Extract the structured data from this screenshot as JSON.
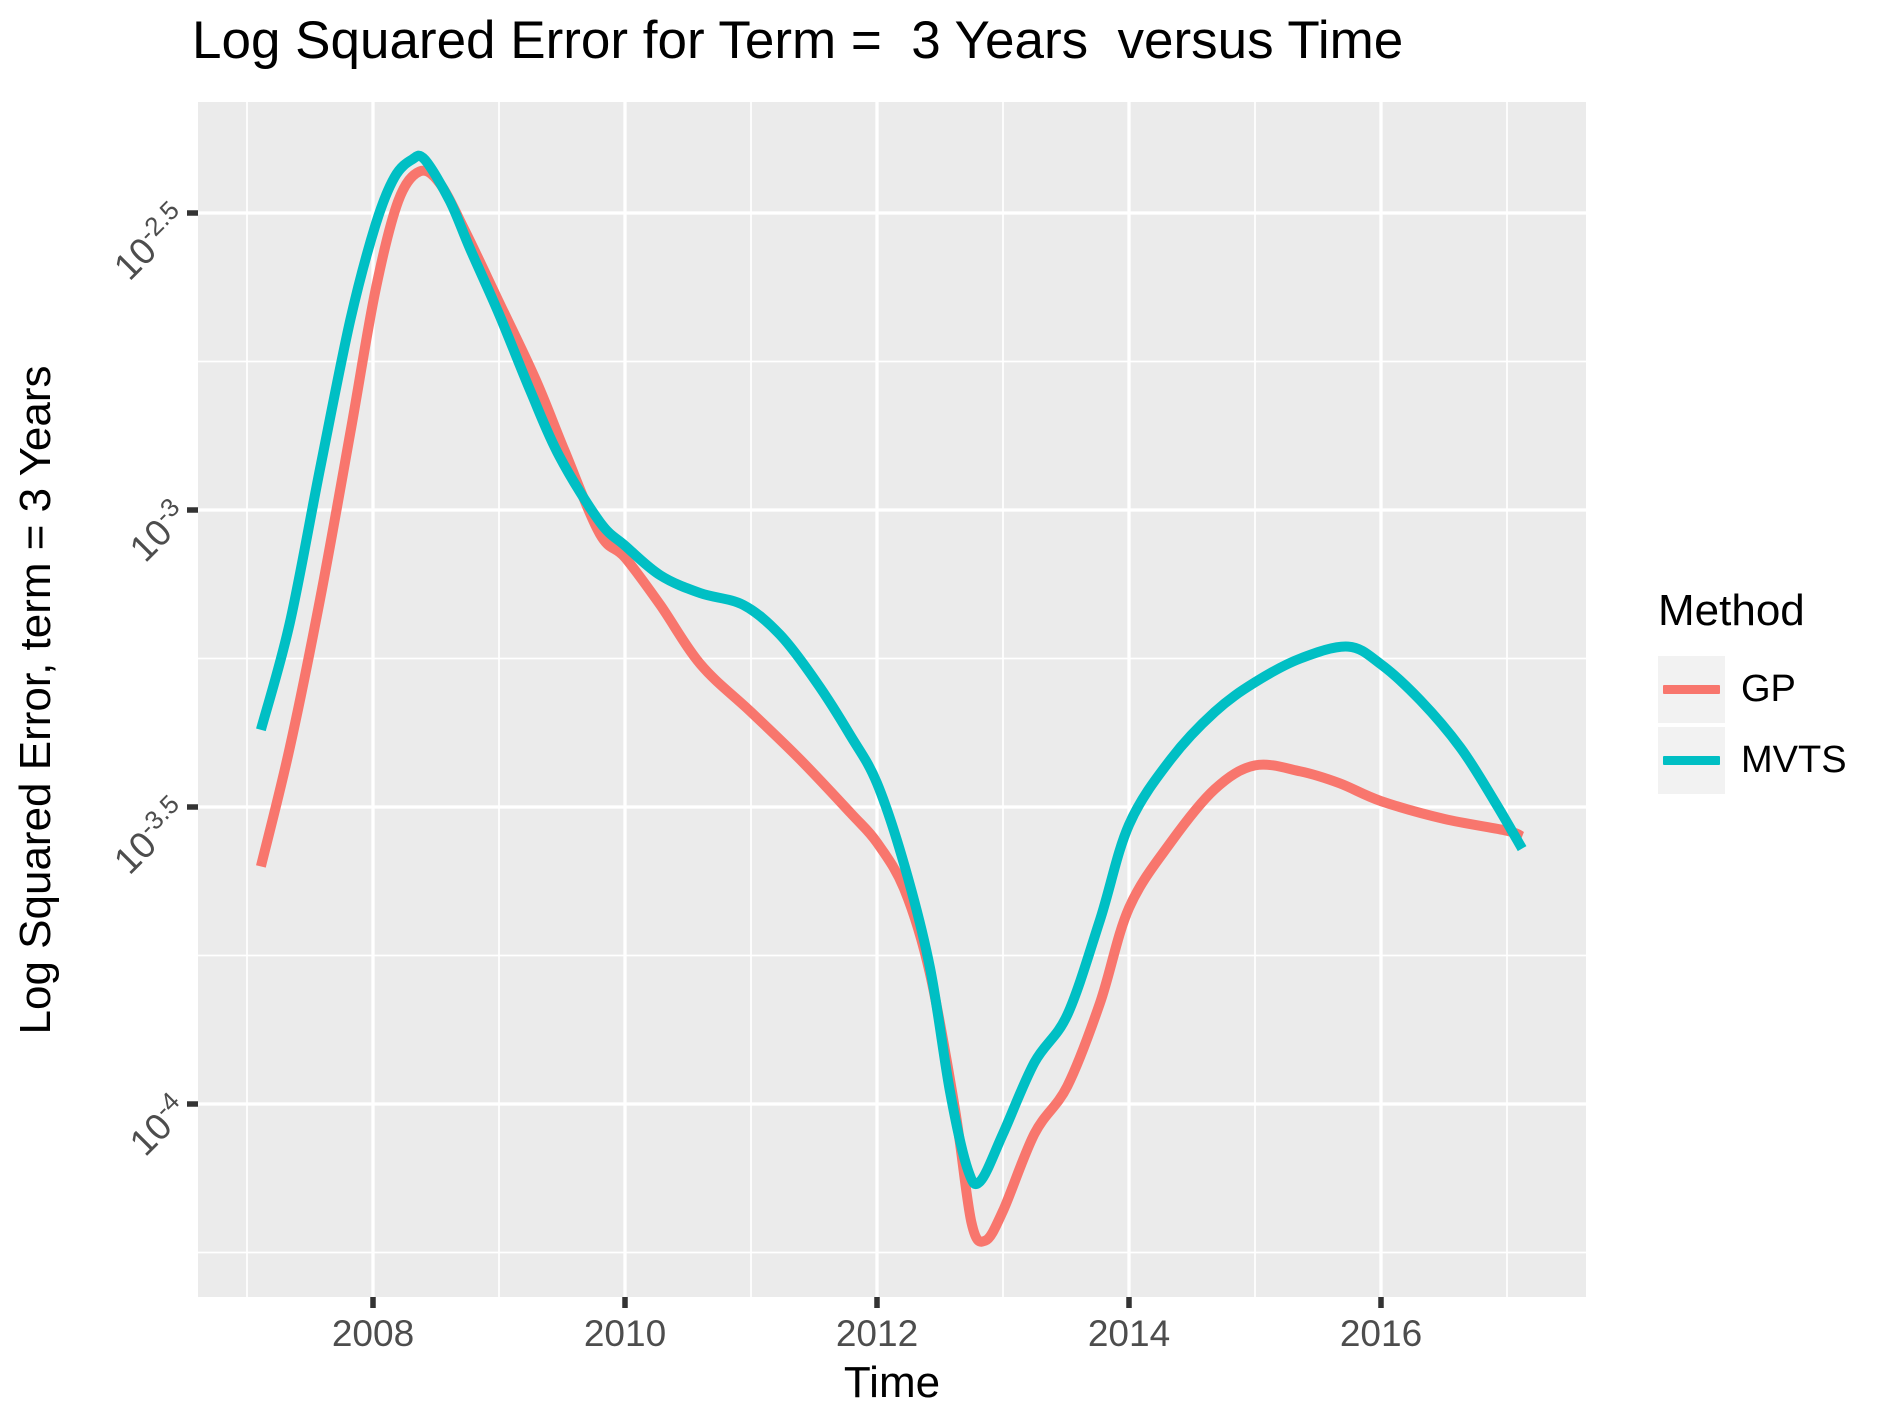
{
  "title": "Log Squared Error for Term =  3 Years  versus Time",
  "axes": {
    "x_label": "Time",
    "y_label": "Log Squared Error, term = 3 Years"
  },
  "legend": {
    "title": "Method",
    "items": [
      {
        "label": "GP",
        "color": "#F8766D"
      },
      {
        "label": "MVTS",
        "color": "#00BFC4"
      }
    ]
  },
  "colors": {
    "panel_bg": "#EBEBEB",
    "grid": "#FFFFFF",
    "tick_mark": "#333333",
    "tick_label": "#4D4D4D",
    "legend_key_bg": "#F2F2F2",
    "gp": "#F8766D",
    "mvts": "#00BFC4"
  },
  "chart_data": {
    "type": "line",
    "title": "Log Squared Error for Term =  3 Years  versus Time",
    "xlabel": "Time",
    "ylabel": "Log Squared Error, term = 3 Years",
    "grid": true,
    "legend_position": "right",
    "x_axis": {
      "lim": [
        2006.61,
        2017.63
      ],
      "major_ticks": [
        2008,
        2010,
        2012,
        2014,
        2016
      ],
      "major_tick_labels": [
        "2008",
        "2010",
        "2012",
        "2014",
        "2016"
      ],
      "minor_gridlines": [
        2007,
        2009,
        2011,
        2013,
        2015,
        2017
      ]
    },
    "y_axis": {
      "scale": "log10",
      "lim_log10": [
        -4.325,
        -2.313
      ],
      "major_ticks": [
        {
          "value": -2.5,
          "base": "10",
          "exp": "-2.5"
        },
        {
          "value": -3.0,
          "base": "10",
          "exp": "-3"
        },
        {
          "value": -3.5,
          "base": "10",
          "exp": "-3.5"
        },
        {
          "value": -4.0,
          "base": "10",
          "exp": "-4"
        }
      ],
      "minor_gridlines": [
        -2.75,
        -3.25,
        -3.75,
        -4.25
      ]
    },
    "series": [
      {
        "name": "GP",
        "color": "#F8766D",
        "points": [
          [
            2007.11,
            -3.6
          ],
          [
            2007.34,
            -3.4
          ],
          [
            2007.58,
            -3.15
          ],
          [
            2007.82,
            -2.87
          ],
          [
            2008.02,
            -2.63
          ],
          [
            2008.2,
            -2.48
          ],
          [
            2008.37,
            -2.43
          ],
          [
            2008.53,
            -2.45
          ],
          [
            2008.73,
            -2.53
          ],
          [
            2009.0,
            -2.65
          ],
          [
            2009.29,
            -2.78
          ],
          [
            2009.52,
            -2.9
          ],
          [
            2009.8,
            -3.04
          ],
          [
            2010.0,
            -3.08
          ],
          [
            2010.28,
            -3.16
          ],
          [
            2010.6,
            -3.26
          ],
          [
            2011.0,
            -3.34
          ],
          [
            2011.39,
            -3.42
          ],
          [
            2011.79,
            -3.51
          ],
          [
            2012.0,
            -3.56
          ],
          [
            2012.22,
            -3.64
          ],
          [
            2012.42,
            -3.78
          ],
          [
            2012.62,
            -4.01
          ],
          [
            2012.75,
            -4.2
          ],
          [
            2012.86,
            -4.23
          ],
          [
            2013.0,
            -4.18
          ],
          [
            2013.25,
            -4.05
          ],
          [
            2013.51,
            -3.97
          ],
          [
            2013.77,
            -3.83
          ],
          [
            2014.0,
            -3.67
          ],
          [
            2014.33,
            -3.56
          ],
          [
            2014.68,
            -3.47
          ],
          [
            2015.0,
            -3.43
          ],
          [
            2015.36,
            -3.44
          ],
          [
            2015.67,
            -3.46
          ],
          [
            2016.0,
            -3.49
          ],
          [
            2016.5,
            -3.52
          ],
          [
            2017.0,
            -3.54
          ],
          [
            2017.12,
            -3.55
          ]
        ]
      },
      {
        "name": "MVTS",
        "color": "#00BFC4",
        "points": [
          [
            2007.11,
            -3.37
          ],
          [
            2007.34,
            -3.19
          ],
          [
            2007.58,
            -2.93
          ],
          [
            2007.82,
            -2.68
          ],
          [
            2008.02,
            -2.52
          ],
          [
            2008.17,
            -2.44
          ],
          [
            2008.31,
            -2.41
          ],
          [
            2008.41,
            -2.41
          ],
          [
            2008.61,
            -2.48
          ],
          [
            2008.77,
            -2.56
          ],
          [
            2009.0,
            -2.67
          ],
          [
            2009.25,
            -2.8
          ],
          [
            2009.48,
            -2.91
          ],
          [
            2009.8,
            -3.02
          ],
          [
            2010.0,
            -3.06
          ],
          [
            2010.28,
            -3.11
          ],
          [
            2010.6,
            -3.14
          ],
          [
            2010.94,
            -3.16
          ],
          [
            2011.23,
            -3.21
          ],
          [
            2011.52,
            -3.29
          ],
          [
            2011.79,
            -3.38
          ],
          [
            2012.0,
            -3.46
          ],
          [
            2012.22,
            -3.6
          ],
          [
            2012.42,
            -3.77
          ],
          [
            2012.58,
            -3.98
          ],
          [
            2012.72,
            -4.11
          ],
          [
            2012.82,
            -4.13
          ],
          [
            2013.0,
            -4.05
          ],
          [
            2013.25,
            -3.93
          ],
          [
            2013.51,
            -3.85
          ],
          [
            2013.77,
            -3.69
          ],
          [
            2014.0,
            -3.53
          ],
          [
            2014.33,
            -3.42
          ],
          [
            2014.68,
            -3.34
          ],
          [
            2015.0,
            -3.29
          ],
          [
            2015.36,
            -3.25
          ],
          [
            2015.74,
            -3.23
          ],
          [
            2016.0,
            -3.26
          ],
          [
            2016.31,
            -3.32
          ],
          [
            2016.63,
            -3.4
          ],
          [
            2016.9,
            -3.49
          ],
          [
            2017.12,
            -3.57
          ]
        ]
      }
    ]
  }
}
